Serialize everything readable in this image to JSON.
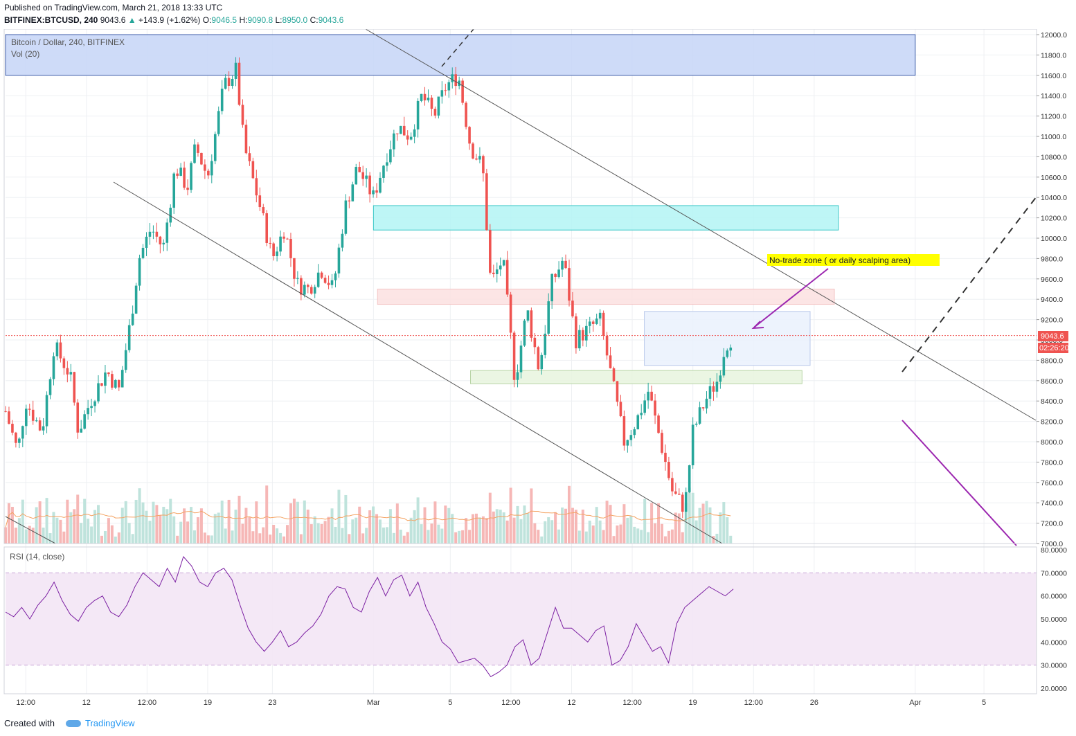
{
  "header": {
    "published": "Published on TradingView.com, March 21, 2018 13:33 UTC",
    "symbol": "BITFINEX:BTCUSD, 240",
    "last": "9043.6",
    "change": "+143.9 (+1.62%)",
    "open_label": "O:",
    "open": "9046.5",
    "high_label": "H:",
    "high": "9090.8",
    "low_label": "L:",
    "low": "8950.0",
    "close_label": "C:",
    "close": "9043.6"
  },
  "legend": {
    "title": "Bitcoin / Dollar, 240, BITFINEX",
    "volume": "Vol (20)",
    "rsi": "RSI (14, close)"
  },
  "annotation": {
    "text": "No-trade zone ( or daily scalping area)"
  },
  "price_badge": {
    "price": "9043.6",
    "countdown": "02:26:20"
  },
  "footer": {
    "created_with": "Created with",
    "brand": "TradingView"
  },
  "colors": {
    "up": "#26a69a",
    "down": "#ef5350",
    "rsi": "#7b1fa2",
    "arrow": "#9c27b0"
  },
  "chart_data": [
    {
      "type": "candlestick",
      "ylim": [
        7000,
        12000
      ],
      "price_ticks": [
        "12000.0",
        "11800.0",
        "11600.0",
        "11400.0",
        "11200.0",
        "11000.0",
        "10800.0",
        "10600.0",
        "10400.0",
        "10200.0",
        "10000.0",
        "9800.0",
        "9600.0",
        "9400.0",
        "9200.0",
        "9000.0",
        "8800.0",
        "8600.0",
        "8400.0",
        "8200.0",
        "8000.0",
        "7800.0",
        "7600.0",
        "7400.0",
        "7200.0",
        "7000.0"
      ],
      "x_ticks": [
        {
          "label": "12:00",
          "t": 0.5
        },
        {
          "label": "12",
          "t": 2.0
        },
        {
          "label": "12:00",
          "t": 3.5
        },
        {
          "label": "19",
          "t": 5.0
        },
        {
          "label": "23",
          "t": 6.6
        },
        {
          "label": "Mar",
          "t": 9.1
        },
        {
          "label": "5",
          "t": 11.0
        },
        {
          "label": "12:00",
          "t": 12.5
        },
        {
          "label": "12",
          "t": 14.0
        },
        {
          "label": "12:00",
          "t": 15.5
        },
        {
          "label": "19",
          "t": 17.0
        },
        {
          "label": "12:00",
          "t": 18.5
        },
        {
          "label": "26",
          "t": 20.0
        },
        {
          "label": "Apr",
          "t": 22.5
        },
        {
          "label": "5",
          "t": 24.2
        }
      ],
      "close_path": [
        [
          0.0,
          8300
        ],
        [
          0.3,
          7900
        ],
        [
          0.5,
          8400
        ],
        [
          0.9,
          8100
        ],
        [
          1.2,
          8950
        ],
        [
          1.6,
          8650
        ],
        [
          1.8,
          8100
        ],
        [
          2.1,
          8400
        ],
        [
          2.5,
          8700
        ],
        [
          2.8,
          8500
        ],
        [
          3.1,
          9200
        ],
        [
          3.3,
          9800
        ],
        [
          3.6,
          10100
        ],
        [
          3.9,
          9900
        ],
        [
          4.2,
          10700
        ],
        [
          4.5,
          10500
        ],
        [
          4.7,
          10900
        ],
        [
          5.0,
          10600
        ],
        [
          5.4,
          11500
        ],
        [
          5.7,
          11650
        ],
        [
          5.9,
          10900
        ],
        [
          6.3,
          10300
        ],
        [
          6.6,
          9800
        ],
        [
          6.9,
          10100
        ],
        [
          7.2,
          9550
        ],
        [
          7.5,
          9500
        ],
        [
          7.8,
          9700
        ],
        [
          8.1,
          9500
        ],
        [
          8.4,
          10300
        ],
        [
          8.7,
          10700
        ],
        [
          9.1,
          10400
        ],
        [
          9.4,
          10800
        ],
        [
          9.7,
          11100
        ],
        [
          10.0,
          11000
        ],
        [
          10.3,
          11400
        ],
        [
          10.6,
          11200
        ],
        [
          10.9,
          11500
        ],
        [
          11.2,
          11600
        ],
        [
          11.5,
          10900
        ],
        [
          11.8,
          10700
        ],
        [
          12.0,
          9550
        ],
        [
          12.3,
          9800
        ],
        [
          12.6,
          8600
        ],
        [
          12.9,
          9300
        ],
        [
          13.2,
          8700
        ],
        [
          13.5,
          9550
        ],
        [
          13.8,
          9800
        ],
        [
          14.1,
          9000
        ],
        [
          14.4,
          9100
        ],
        [
          14.7,
          9200
        ],
        [
          15.0,
          8600
        ],
        [
          15.3,
          8000
        ],
        [
          15.6,
          8200
        ],
        [
          15.9,
          8500
        ],
        [
          16.2,
          8000
        ],
        [
          16.5,
          7500
        ],
        [
          16.8,
          7350
        ],
        [
          17.0,
          8100
        ],
        [
          17.3,
          8400
        ],
        [
          17.6,
          8600
        ],
        [
          17.8,
          8950
        ],
        [
          18.0,
          9043
        ]
      ],
      "zones": [
        {
          "y": [
            11600,
            12000
          ],
          "x": [
            0,
            22.5
          ],
          "color": "#c5d5f7"
        },
        {
          "y": [
            10080,
            10320
          ],
          "x": [
            9.1,
            20.6
          ],
          "color": "#b3f5f5"
        },
        {
          "y": [
            9350,
            9500
          ],
          "x": [
            9.2,
            20.5
          ],
          "color": "#fbe0e0"
        },
        {
          "y": [
            8750,
            9280
          ],
          "x": [
            15.8,
            19.9
          ],
          "color": "#eaf1fd"
        },
        {
          "y": [
            8570,
            8700
          ],
          "x": [
            11.5,
            19.7
          ],
          "color": "#e8f4de"
        }
      ]
    },
    {
      "type": "bar",
      "name": "Vol (20)"
    },
    {
      "type": "line",
      "name": "RSI (14, close)",
      "ylim": [
        20,
        80
      ],
      "y_ticks": [
        "80.0000",
        "70.0000",
        "60.0000",
        "50.0000",
        "40.0000",
        "30.0000",
        "20.0000"
      ],
      "values": [
        53,
        51,
        55,
        50,
        56,
        60,
        66,
        58,
        52,
        49,
        55,
        58,
        60,
        53,
        51,
        56,
        64,
        70,
        67,
        64,
        72,
        66,
        77,
        73,
        66,
        64,
        70,
        72,
        67,
        56,
        46,
        40,
        36,
        40,
        45,
        38,
        40,
        44,
        47,
        52,
        60,
        64,
        63,
        55,
        53,
        62,
        68,
        60,
        67,
        69,
        60,
        66,
        55,
        48,
        40,
        37,
        31,
        32,
        33,
        30,
        25,
        27,
        30,
        38,
        41,
        30,
        33,
        44,
        55,
        46,
        46,
        43,
        40,
        45,
        47,
        30,
        32,
        38,
        48,
        42,
        36,
        38,
        31,
        48,
        55,
        58,
        61,
        64,
        62,
        60,
        63
      ]
    }
  ]
}
